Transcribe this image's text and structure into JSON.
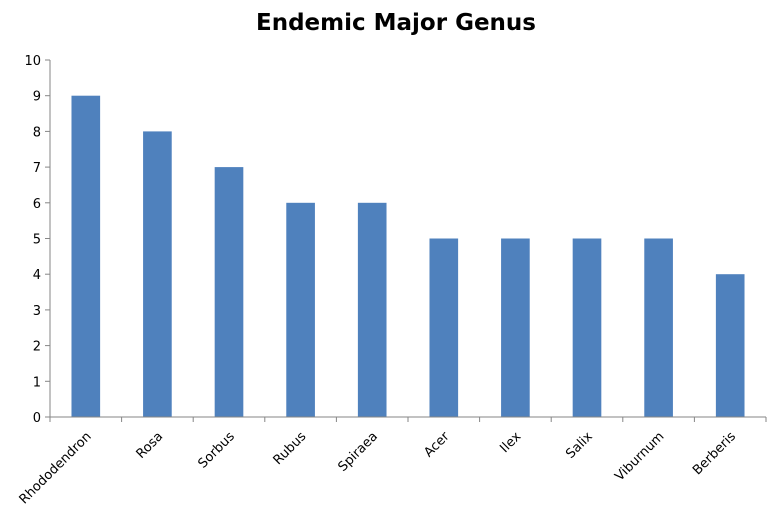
{
  "chart_data": {
    "type": "bar",
    "title": "Endemic Major Genus",
    "xlabel": "",
    "ylabel": "",
    "categories": [
      "Rhododendron",
      "Rosa",
      "Sorbus",
      "Rubus",
      "Spiraea",
      "Acer",
      "Ilex",
      "Salix",
      "Viburnum",
      "Berberis"
    ],
    "values": [
      9,
      8,
      7,
      6,
      6,
      5,
      5,
      5,
      5,
      4
    ],
    "ylim": [
      0,
      10
    ],
    "yticks": [
      0,
      1,
      2,
      3,
      4,
      5,
      6,
      7,
      8,
      9,
      10
    ],
    "grid": false,
    "legend": "none",
    "bar_color": "#4F81BD"
  }
}
